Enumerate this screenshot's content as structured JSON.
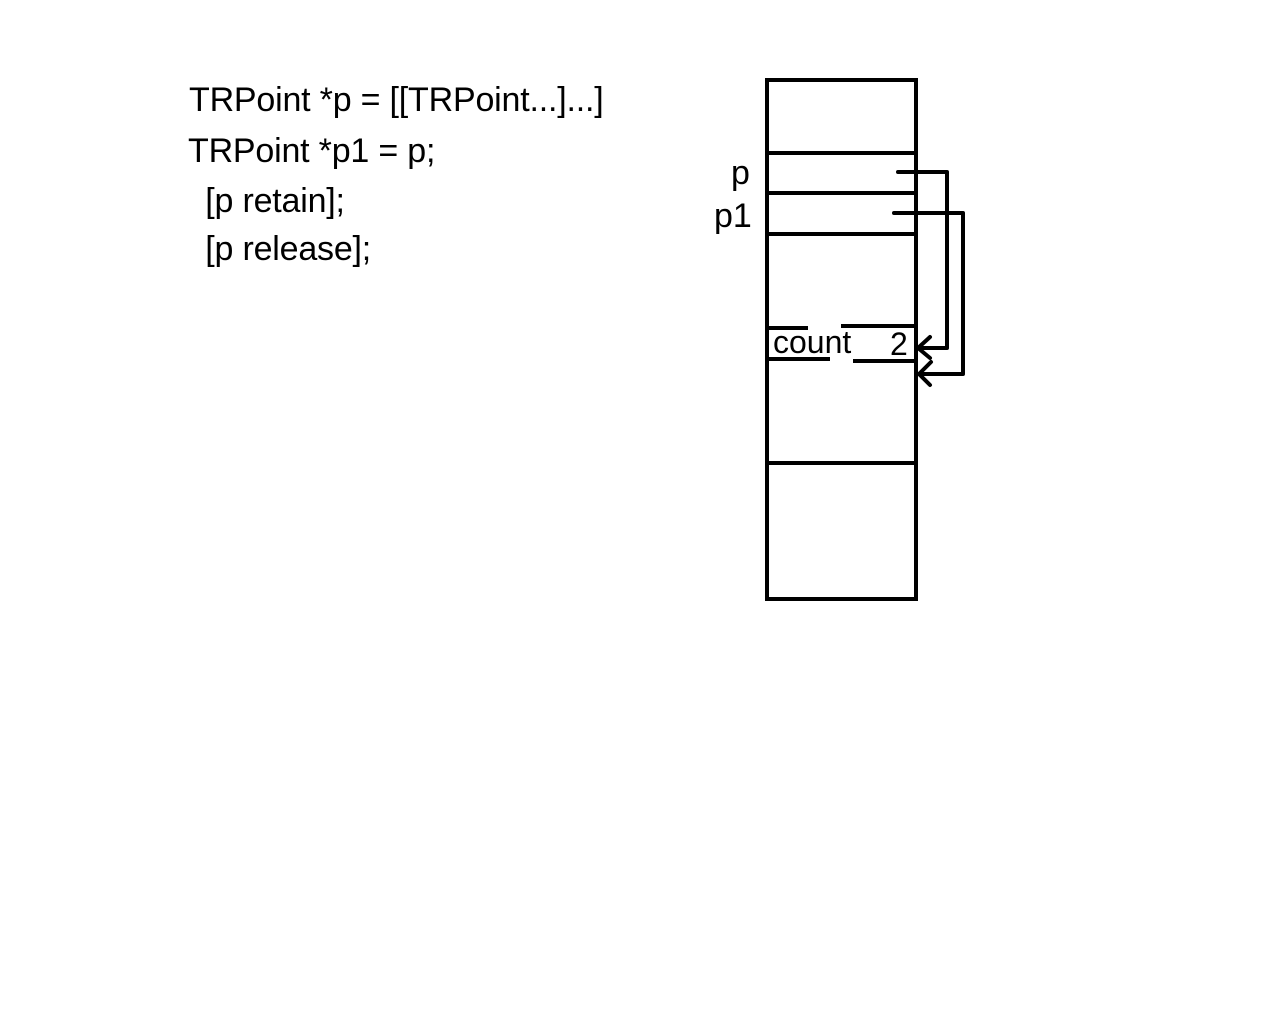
{
  "code": {
    "lines": [
      "TRPoint *p = [[TRPoint...]...]",
      "TRPoint *p1 = p;",
      " [p retain];",
      " [p release];"
    ]
  },
  "memory": {
    "variables": [
      "p",
      "p1"
    ],
    "object_field_label": "count",
    "object_field_value": "2"
  }
}
